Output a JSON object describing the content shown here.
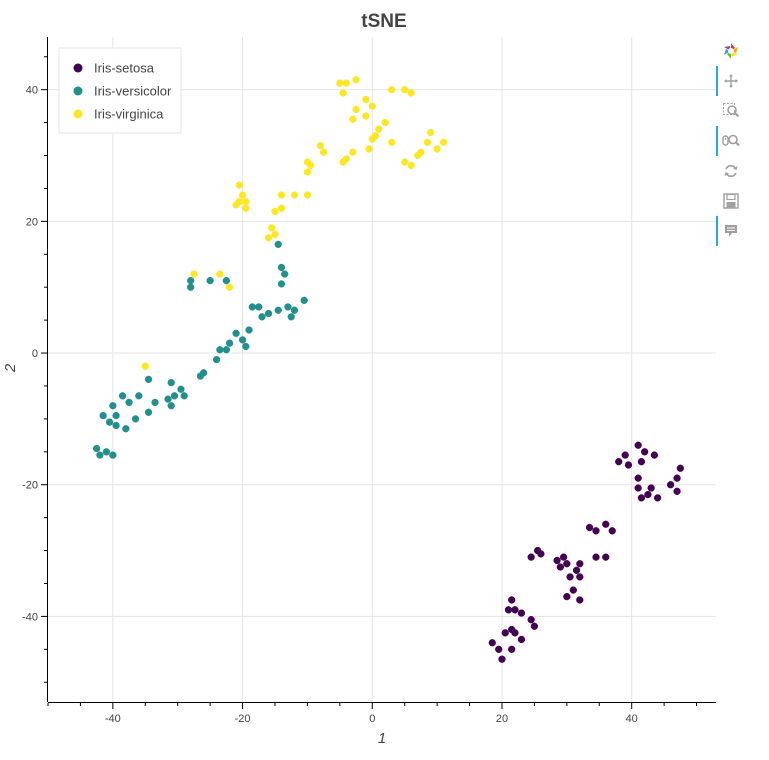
{
  "chart_data": {
    "type": "scatter",
    "title": "tSNE",
    "xlabel": "1",
    "ylabel": "2",
    "xlim": [
      -50,
      53
    ],
    "ylim": [
      -53,
      48
    ],
    "xticks": [
      -40,
      -20,
      0,
      20,
      40
    ],
    "yticks": [
      -40,
      -20,
      0,
      20,
      40
    ],
    "grid": true,
    "legend_position": "top-left",
    "series": [
      {
        "name": "Iris-setosa",
        "color": "#440154",
        "points": [
          [
            41,
            -14
          ],
          [
            42,
            -15
          ],
          [
            43.5,
            -15.5
          ],
          [
            39,
            -15.5
          ],
          [
            39.5,
            -17
          ],
          [
            41.5,
            -16.5
          ],
          [
            38,
            -16.5
          ],
          [
            47.5,
            -17.5
          ],
          [
            41,
            -19
          ],
          [
            41,
            -20.5
          ],
          [
            43,
            -20.5
          ],
          [
            46,
            -20
          ],
          [
            47,
            -19
          ],
          [
            41.5,
            -22
          ],
          [
            42.5,
            -21.5
          ],
          [
            44,
            -22
          ],
          [
            47,
            -21
          ],
          [
            33.5,
            -26.5
          ],
          [
            34.5,
            -27
          ],
          [
            36,
            -26
          ],
          [
            37,
            -27
          ],
          [
            24.5,
            -31
          ],
          [
            25.5,
            -30
          ],
          [
            26,
            -30.5
          ],
          [
            28.5,
            -31.5
          ],
          [
            29.5,
            -31
          ],
          [
            30,
            -32
          ],
          [
            32,
            -32
          ],
          [
            34.5,
            -31
          ],
          [
            36,
            -31
          ],
          [
            29,
            -32.5
          ],
          [
            31.5,
            -33
          ],
          [
            30.5,
            -34
          ],
          [
            32,
            -34
          ],
          [
            31,
            -36
          ],
          [
            30,
            -37
          ],
          [
            32,
            -37.5
          ],
          [
            21.5,
            -37.5
          ],
          [
            21,
            -39
          ],
          [
            22,
            -39
          ],
          [
            23,
            -39.5
          ],
          [
            24.5,
            -40.5
          ],
          [
            25,
            -41.5
          ],
          [
            21.5,
            -42
          ],
          [
            22,
            -42.5
          ],
          [
            20.5,
            -42.5
          ],
          [
            23,
            -43.5
          ],
          [
            18.5,
            -44
          ],
          [
            21.5,
            -45
          ],
          [
            19.5,
            -45
          ],
          [
            20,
            -46.5
          ]
        ]
      },
      {
        "name": "Iris-versicolor",
        "color": "#21908d",
        "points": [
          [
            -14.5,
            16.5
          ],
          [
            -14,
            13
          ],
          [
            -13.5,
            12
          ],
          [
            -14,
            10.5
          ],
          [
            -28,
            10
          ],
          [
            -28,
            11
          ],
          [
            -25,
            11
          ],
          [
            -22.5,
            11
          ],
          [
            -18.5,
            7
          ],
          [
            -17.5,
            7
          ],
          [
            -16,
            6
          ],
          [
            -14.5,
            6.5
          ],
          [
            -13,
            7
          ],
          [
            -12,
            6.5
          ],
          [
            -12.5,
            5.5
          ],
          [
            -10.5,
            8
          ],
          [
            -17,
            5.5
          ],
          [
            -19,
            3.5
          ],
          [
            -21,
            3
          ],
          [
            -22,
            1.5
          ],
          [
            -20,
            2
          ],
          [
            -19.5,
            1
          ],
          [
            -22.5,
            0.5
          ],
          [
            -23.5,
            0.5
          ],
          [
            -24,
            -1
          ],
          [
            -26,
            -3
          ],
          [
            -26.5,
            -3.5
          ],
          [
            -34.5,
            -4
          ],
          [
            -31,
            -4.5
          ],
          [
            -29.5,
            -5.5
          ],
          [
            -30.5,
            -6.5
          ],
          [
            -31.5,
            -7
          ],
          [
            -29,
            -6.5
          ],
          [
            -33.5,
            -7.5
          ],
          [
            -31,
            -8
          ],
          [
            -36,
            -6.5
          ],
          [
            -37.5,
            -7.5
          ],
          [
            -38.5,
            -6.5
          ],
          [
            -34.5,
            -9
          ],
          [
            -36.5,
            -10
          ],
          [
            -40,
            -8
          ],
          [
            -41.5,
            -9.5
          ],
          [
            -39.5,
            -9.5
          ],
          [
            -40.5,
            -10.5
          ],
          [
            -39.5,
            -11
          ],
          [
            -38,
            -11.5
          ],
          [
            -42.5,
            -14.5
          ],
          [
            -42,
            -15.5
          ],
          [
            -41,
            -15
          ],
          [
            -40,
            -15.5
          ]
        ]
      },
      {
        "name": "Iris-virginica",
        "color": "#fde725",
        "points": [
          [
            -5,
            41
          ],
          [
            -4,
            41
          ],
          [
            -2.5,
            41.5
          ],
          [
            -4.5,
            39.5
          ],
          [
            3,
            40
          ],
          [
            5,
            40
          ],
          [
            6,
            39.5
          ],
          [
            -1,
            38.5
          ],
          [
            -2.5,
            37
          ],
          [
            0,
            37.5
          ],
          [
            -1,
            36
          ],
          [
            -3,
            35.5
          ],
          [
            2,
            35
          ],
          [
            1,
            34
          ],
          [
            0.5,
            33
          ],
          [
            0,
            32.5
          ],
          [
            3,
            32
          ],
          [
            -0.5,
            31
          ],
          [
            -3,
            30.5
          ],
          [
            -4,
            29.5
          ],
          [
            -4.5,
            29
          ],
          [
            9,
            33.5
          ],
          [
            8.5,
            32
          ],
          [
            11,
            32
          ],
          [
            10,
            31
          ],
          [
            7.5,
            30.5
          ],
          [
            7,
            30
          ],
          [
            5,
            29
          ],
          [
            6,
            28.5
          ],
          [
            -8,
            31.5
          ],
          [
            -7.5,
            30.5
          ],
          [
            -10,
            29
          ],
          [
            -9.5,
            28.5
          ],
          [
            -10,
            27.5
          ],
          [
            -20.5,
            25.5
          ],
          [
            -20,
            24
          ],
          [
            -14,
            24
          ],
          [
            -12,
            24
          ],
          [
            -10,
            24
          ],
          [
            -20.5,
            23
          ],
          [
            -19.5,
            23
          ],
          [
            -21,
            22.5
          ],
          [
            -19.5,
            22
          ],
          [
            -14,
            22
          ],
          [
            -15,
            21.5
          ],
          [
            -15.5,
            19
          ],
          [
            -15,
            18
          ],
          [
            -16,
            17.5
          ],
          [
            -27.5,
            12
          ],
          [
            -23.5,
            12
          ],
          [
            -22,
            10
          ],
          [
            -35,
            -2
          ]
        ]
      }
    ]
  },
  "toolbar": {
    "tools": [
      "bokeh-logo-icon",
      "pan-icon",
      "box-zoom-icon",
      "wheel-zoom-icon",
      "reset-icon",
      "save-icon",
      "hover-icon"
    ]
  }
}
